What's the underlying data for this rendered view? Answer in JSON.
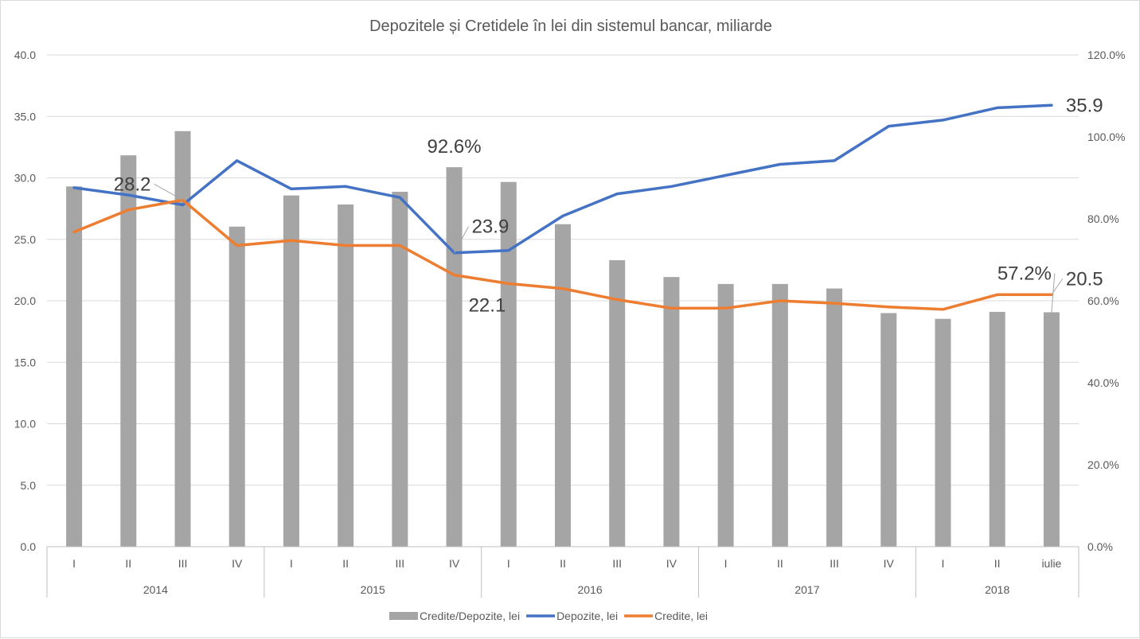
{
  "chart_data": {
    "type": "bar",
    "title": "Depozitele și Cretidele în lei din sistemul bancar, miliarde",
    "categories": [
      "I",
      "II",
      "III",
      "IV",
      "I",
      "II",
      "III",
      "IV",
      "I",
      "II",
      "III",
      "IV",
      "I",
      "II",
      "III",
      "IV",
      "I",
      "II",
      "iulie"
    ],
    "years": [
      {
        "label": "2014",
        "span": 4
      },
      {
        "label": "2015",
        "span": 4
      },
      {
        "label": "2016",
        "span": 4
      },
      {
        "label": "2017",
        "span": 4
      },
      {
        "label": "2018",
        "span": 3
      }
    ],
    "y_left": {
      "min": 0,
      "max": 40,
      "step": 5,
      "ticks": [
        "0.0",
        "5.0",
        "10.0",
        "15.0",
        "20.0",
        "25.0",
        "30.0",
        "35.0",
        "40.0"
      ]
    },
    "y_right": {
      "min": 0,
      "max": 120,
      "step": 20,
      "ticks": [
        "0.0%",
        "20.0%",
        "40.0%",
        "60.0%",
        "80.0%",
        "100.0%",
        "120.0%"
      ]
    },
    "grid": true,
    "legend_position": "bottom",
    "series": [
      {
        "name": "Credite/Depozite, lei",
        "type": "bar",
        "axis": "right",
        "color": "#a5a5a5",
        "values": [
          87.9,
          95.5,
          101.4,
          78.1,
          85.7,
          83.5,
          86.6,
          92.6,
          89.0,
          78.7,
          69.9,
          65.8,
          64.1,
          64.1,
          63.0,
          57.0,
          55.6,
          57.3,
          57.2
        ]
      },
      {
        "name": "Depozite, lei",
        "type": "line",
        "axis": "left",
        "color": "#4472c4",
        "values": [
          29.2,
          28.6,
          27.8,
          31.4,
          29.1,
          29.3,
          28.4,
          23.9,
          24.1,
          26.9,
          28.7,
          29.3,
          30.2,
          31.1,
          31.4,
          34.2,
          34.7,
          35.7,
          35.9
        ]
      },
      {
        "name": "Credite, lei",
        "type": "line",
        "axis": "left",
        "color": "#ed7d31",
        "values": [
          25.6,
          27.4,
          28.2,
          24.5,
          24.9,
          24.5,
          24.5,
          22.1,
          21.4,
          21.0,
          20.1,
          19.4,
          19.4,
          20.0,
          19.8,
          19.5,
          19.3,
          20.5,
          20.5
        ]
      }
    ],
    "data_labels": [
      {
        "text": "28.2",
        "series": 2,
        "index": 2
      },
      {
        "text": "92.6%",
        "series": 0,
        "index": 7
      },
      {
        "text": "23.9",
        "series": 1,
        "index": 7
      },
      {
        "text": "22.1",
        "series": 2,
        "index": 7
      },
      {
        "text": "35.9",
        "series": 1,
        "index": 18
      },
      {
        "text": "57.2%",
        "series": 0,
        "index": 18
      },
      {
        "text": "20.5",
        "series": 2,
        "index": 18
      }
    ]
  }
}
